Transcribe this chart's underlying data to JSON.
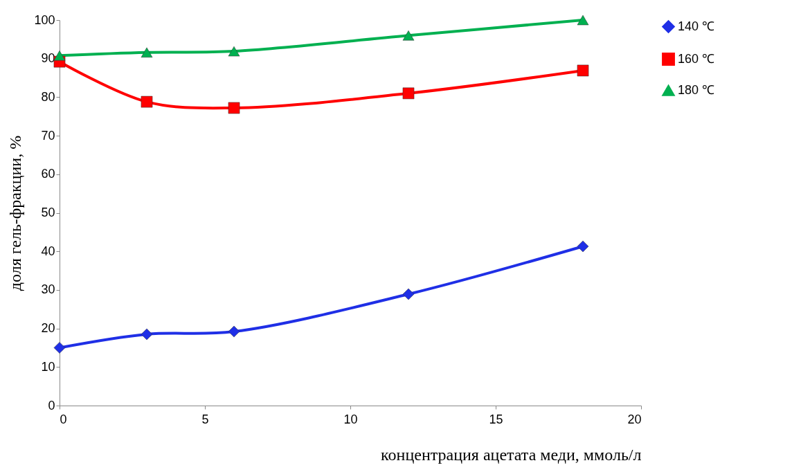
{
  "chart_data": {
    "type": "line",
    "xlabel": "концентрация ацетата меди, ммоль/л",
    "ylabel": "доля гель-фракции, %",
    "x": [
      0,
      3,
      6,
      12,
      18
    ],
    "series": [
      {
        "name": "140 ℃",
        "color": "#1f2fe6",
        "marker": "diamond",
        "values": [
          15,
          18.5,
          19.2,
          28.9,
          41.3
        ]
      },
      {
        "name": "160 ℃",
        "color": "#ff0000",
        "marker": "square",
        "values": [
          89.2,
          78.8,
          77.2,
          81,
          86.9
        ]
      },
      {
        "name": "180 ℃",
        "color": "#00b050",
        "marker": "triangle",
        "values": [
          90.8,
          91.6,
          91.9,
          96,
          100
        ]
      }
    ],
    "xlim": [
      0,
      20
    ],
    "xticks": [
      0,
      5,
      10,
      15,
      20
    ],
    "ylim": [
      0,
      100
    ],
    "yticks": [
      0,
      10,
      20,
      30,
      40,
      50,
      60,
      70,
      80,
      90,
      100
    ],
    "grid": false,
    "legend": "right",
    "line_style": "solid"
  }
}
